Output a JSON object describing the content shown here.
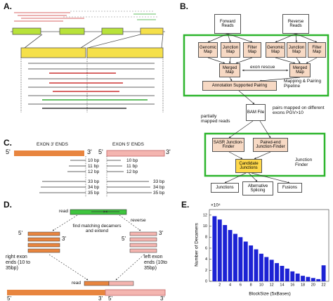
{
  "panel_labels": [
    "A.",
    "B.",
    "C.",
    "D.",
    "E."
  ],
  "panel_b": {
    "nodes": [
      "Forward Reads",
      "Reverse Reads",
      "Genomic Map",
      "Junction Map",
      "Filter Map",
      "Genomic Map",
      "Junction Map",
      "Filter Map",
      "Merged Map",
      "Merged Map",
      "Annotation Supported Pairing",
      "BAM File",
      "SASR Junction-Finder",
      "Paired-end Junction-Finder",
      "Candidate Junctions",
      "Junctions",
      "Alternative Splicing",
      "Fusions"
    ],
    "notes": [
      "exon rescue",
      "Mapping & Pairing Pipeline",
      "partially mapped reads",
      "pairs mapped on different exons PGV>10",
      "Junction Finder"
    ]
  },
  "panel_c": {
    "headers": [
      "EXON 3' ENDS",
      "EXON 5' ENDS"
    ],
    "ends": [
      "5'",
      "3'",
      "5'",
      "3'"
    ],
    "left_lengths": [
      "10 bp",
      "11 bp",
      "12 bp",
      "33 bp",
      "34 bp",
      "35 bp"
    ],
    "right_lengths": [
      "10 bp",
      "11 bp",
      "12 bp",
      "33 bp",
      "34 bp",
      "35 bp"
    ]
  },
  "panel_d": {
    "texts": [
      "read",
      "reverse",
      "find matching decamers and extend",
      "right exon ends (10 to 35bp)",
      "left exon ends (10to 35bp)",
      "read"
    ],
    "ends": [
      "5'",
      "3'",
      "5'",
      "3'",
      "5'",
      "3'",
      "5'",
      "3'"
    ]
  },
  "chart_data": {
    "type": "bar",
    "x_label": "BlockSize (5xBases)",
    "y_label": "Number of Decamers",
    "y_multiplier": "×10⁴",
    "x": [
      1,
      2,
      3,
      4,
      5,
      6,
      7,
      8,
      9,
      10,
      11,
      12,
      13,
      14,
      15,
      16,
      17,
      18,
      19,
      20,
      21,
      22
    ],
    "values": [
      11.8,
      11.2,
      10.2,
      9.3,
      8.6,
      8.0,
      7.2,
      6.5,
      5.8,
      5.0,
      4.4,
      3.9,
      3.3,
      2.8,
      2.3,
      1.8,
      1.4,
      1.0,
      0.8,
      0.6,
      0.4,
      2.9
    ],
    "color": "#1c22d4",
    "xlim": [
      0,
      23
    ],
    "xticks": [
      2,
      4,
      6,
      8,
      10,
      12,
      14,
      16,
      18,
      20,
      22
    ],
    "ylim": [
      0,
      13
    ],
    "yticks": [
      0,
      2,
      4,
      6,
      8,
      10,
      12
    ],
    "grid": false
  }
}
